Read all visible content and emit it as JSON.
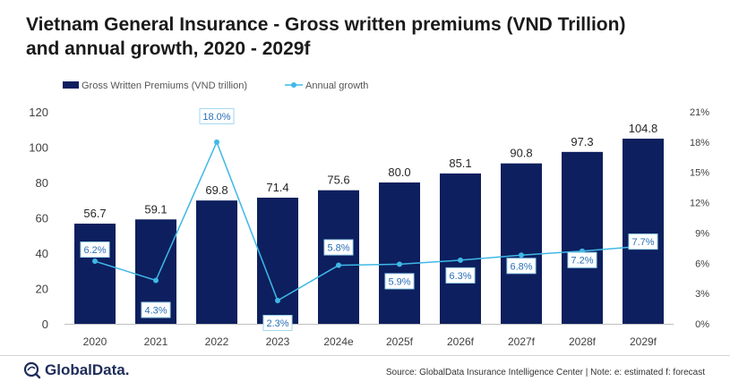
{
  "title": {
    "line1": "Vietnam General Insurance - Gross written premiums (VND Trillion)",
    "line2": "and annual growth, 2020 - 2029f"
  },
  "chart_data": {
    "type": "bar",
    "categories": [
      "2020",
      "2021",
      "2022",
      "2023",
      "2024e",
      "2025f",
      "2026f",
      "2027f",
      "2028f",
      "2029f"
    ],
    "series": [
      {
        "name": "Gross Written Premiums (VND trillion)",
        "type": "bar",
        "axis": "left",
        "color": "#0d1f5e",
        "values": [
          56.7,
          59.1,
          69.8,
          71.4,
          75.6,
          80.0,
          85.1,
          90.8,
          97.3,
          104.8
        ],
        "labels": [
          "56.7",
          "59.1",
          "69.8",
          "71.4",
          "75.6",
          "80.0",
          "85.1",
          "90.8",
          "97.3",
          "104.8"
        ]
      },
      {
        "name": "Annual growth",
        "type": "line",
        "axis": "right",
        "color": "#3fb8e6",
        "values": [
          6.2,
          4.3,
          18.0,
          2.3,
          5.8,
          5.9,
          6.3,
          6.8,
          7.2,
          7.7
        ],
        "labels": [
          "6.2%",
          "4.3%",
          "18.0%",
          "2.3%",
          "5.8%",
          "5.9%",
          "6.3%",
          "6.8%",
          "7.2%",
          "7.7%"
        ]
      }
    ],
    "y_left": {
      "min": 0,
      "max": 120,
      "ticks": [
        "0",
        "20",
        "40",
        "60",
        "80",
        "100",
        "120"
      ]
    },
    "y_right": {
      "min": 0,
      "max": 21,
      "ticks": [
        "0%",
        "3%",
        "6%",
        "9%",
        "12%",
        "15%",
        "18%",
        "21%"
      ]
    },
    "grid": false,
    "legend": "top-left"
  },
  "footer": {
    "logo_text": "GlobalData.",
    "logo_icon": "globaldata-logo-icon",
    "source": "Source: GlobalData Insurance Intelligence Center | Note: e: estimated f: forecast"
  }
}
